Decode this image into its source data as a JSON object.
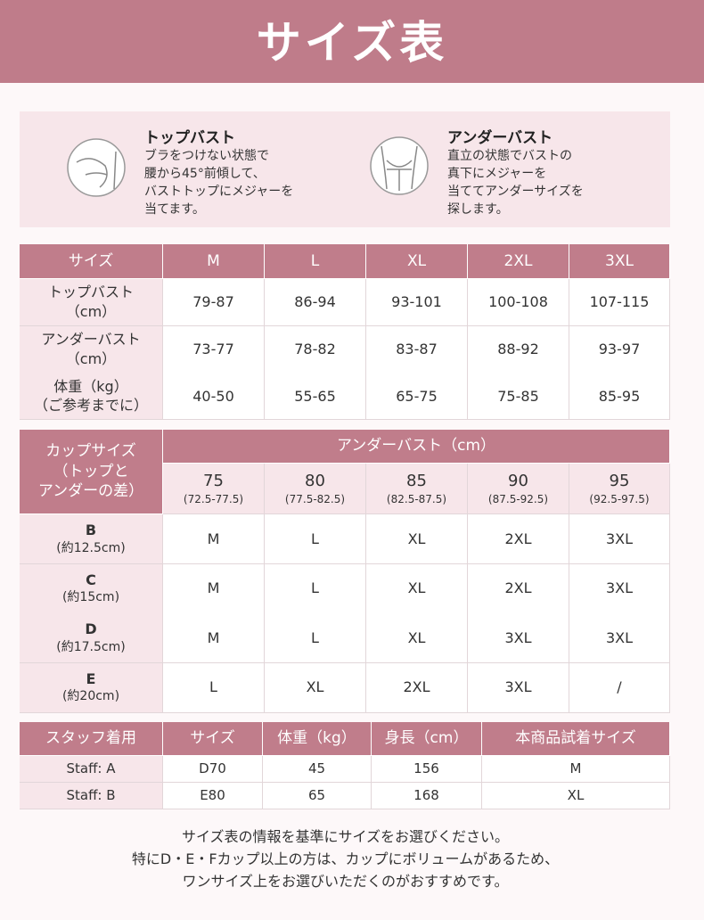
{
  "title": "サイズ表",
  "guide": [
    {
      "heading": "トップバスト",
      "lines": [
        "ブラをつけない状態で",
        "腰から45°前傾して、",
        "バストトップにメジャーを",
        "当てます。"
      ]
    },
    {
      "heading": "アンダーバスト",
      "lines": [
        "直立の状態でバストの",
        "真下にメジャーを",
        "当ててアンダーサイズを",
        "探します。"
      ]
    }
  ],
  "table1": {
    "header": [
      "サイズ",
      "M",
      "L",
      "XL",
      "2XL",
      "3XL"
    ],
    "rows": [
      {
        "label": [
          "トップバスト",
          "（cm）"
        ],
        "cells": [
          "79-87",
          "86-94",
          "93-101",
          "100-108",
          "107-115"
        ]
      },
      {
        "label": [
          "アンダーバスト",
          "（cm）"
        ],
        "cells": [
          "73-77",
          "78-82",
          "83-87",
          "88-92",
          "93-97"
        ]
      },
      {
        "label": [
          "体重（kg）",
          "（ご参考までに）"
        ],
        "cells": [
          "40-50",
          "55-65",
          "65-75",
          "75-85",
          "85-95"
        ]
      }
    ]
  },
  "table2": {
    "corner": [
      "カップサイズ",
      "（トップと",
      "アンダーの差）"
    ],
    "group": "アンダーバスト（cm）",
    "columns": [
      {
        "size": "75",
        "range": "(72.5-77.5)"
      },
      {
        "size": "80",
        "range": "(77.5-82.5)"
      },
      {
        "size": "85",
        "range": "(82.5-87.5)"
      },
      {
        "size": "90",
        "range": "(87.5-92.5)"
      },
      {
        "size": "95",
        "range": "(92.5-97.5)"
      }
    ],
    "rows": [
      {
        "cup": "B",
        "diff": "(約12.5cm)",
        "cells": [
          "M",
          "L",
          "XL",
          "2XL",
          "3XL"
        ]
      },
      {
        "cup": "C",
        "diff": "(約15cm)",
        "cells": [
          "M",
          "L",
          "XL",
          "2XL",
          "3XL"
        ]
      },
      {
        "cup": "D",
        "diff": "(約17.5cm)",
        "cells": [
          "M",
          "L",
          "XL",
          "3XL",
          "3XL"
        ]
      },
      {
        "cup": "E",
        "diff": "(約20cm)",
        "cells": [
          "L",
          "XL",
          "2XL",
          "3XL",
          "/"
        ]
      }
    ]
  },
  "table3": {
    "header": [
      "スタッフ着用",
      "サイズ",
      "体重（kg）",
      "身長（cm）",
      "本商品試着サイズ"
    ],
    "rows": [
      [
        "Staff: A",
        "D70",
        "45",
        "156",
        "M"
      ],
      [
        "Staff: B",
        "E80",
        "65",
        "168",
        "XL"
      ]
    ]
  },
  "notes": [
    "サイズ表の情報を基準にサイズをお選びください。",
    "特にD・E・Fカップ以上の方は、カップにボリュームがあるため、",
    "ワンサイズ上をお選びいただくのがおすすめです。"
  ]
}
